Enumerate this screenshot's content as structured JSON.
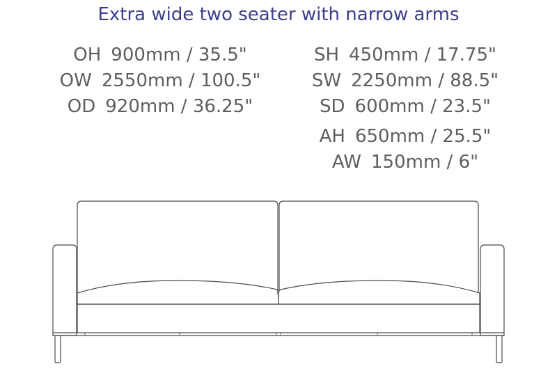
{
  "title": "Extra wide two seater with narrow arms",
  "dimensions_left": [
    {
      "code": "OH",
      "value": "900mm / 35.5\""
    },
    {
      "code": "OW",
      "value": "2550mm / 100.5\""
    },
    {
      "code": "OD",
      "value": "920mm / 36.25\""
    }
  ],
  "dimensions_right": [
    {
      "code": "SH",
      "value": "450mm / 17.75\""
    },
    {
      "code": "SW",
      "value": "2250mm / 88.5\""
    },
    {
      "code": "SD",
      "value": "600mm / 23.5\""
    }
  ],
  "dimensions_right_extra": [
    {
      "code": "AH",
      "value": "650mm / 25.5\""
    },
    {
      "code": "AW",
      "value": "150mm / 6\""
    }
  ],
  "colors": {
    "title": "#3c3e8c",
    "dimension_text": "#5e5e5e",
    "line_art": "#4a4a4a"
  }
}
